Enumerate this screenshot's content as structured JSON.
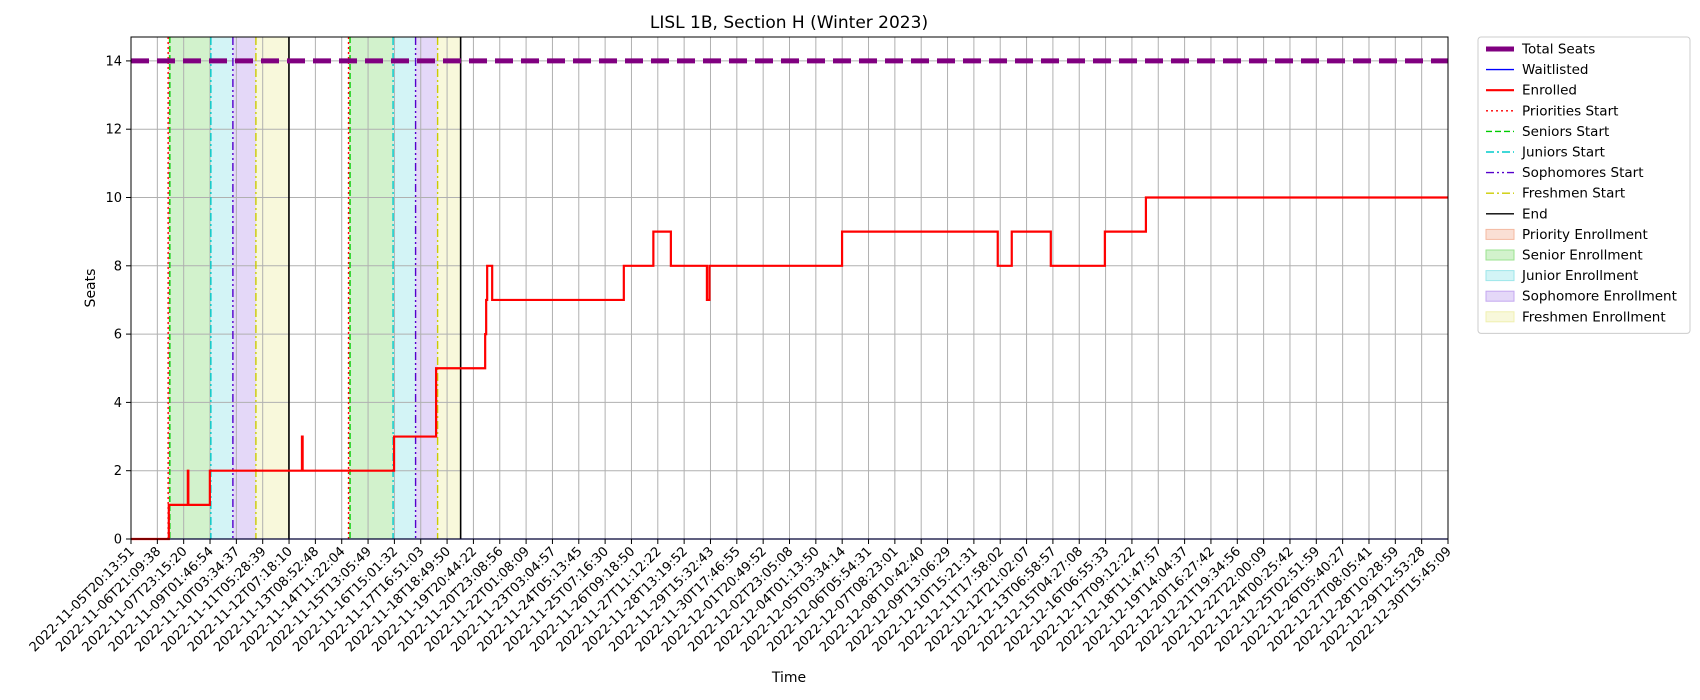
{
  "chart_data": {
    "type": "line",
    "title": "LISL 1B, Section H (Winter 2023)",
    "xlabel": "Time",
    "ylabel": "Seats",
    "xlim": [
      "2022-11-05T20:13:51",
      "2022-12-30T15:45:09"
    ],
    "ylim": [
      0,
      14.7
    ],
    "yticks": [
      0,
      2,
      4,
      6,
      8,
      10,
      12,
      14
    ],
    "grid": true,
    "legend_position": "outside-right",
    "x_tick_labels": [
      "2022-11-05T20:13:51",
      "2022-11-06T21:09:38",
      "2022-11-07T23:15:20",
      "2022-11-09T01:46:54",
      "2022-11-10T03:34:37",
      "2022-11-11T05:28:39",
      "2022-11-12T07:18:10",
      "2022-11-13T08:52:48",
      "2022-11-14T11:22:04",
      "2022-11-15T13:05:49",
      "2022-11-16T15:01:32",
      "2022-11-17T16:51:03",
      "2022-11-18T18:49:50",
      "2022-11-19T20:44:22",
      "2022-11-20T23:08:56",
      "2022-11-22T01:08:09",
      "2022-11-23T03:04:57",
      "2022-11-24T05:13:45",
      "2022-11-25T07:16:30",
      "2022-11-26T09:18:50",
      "2022-11-27T11:12:22",
      "2022-11-28T13:19:52",
      "2022-11-29T15:32:43",
      "2022-11-30T17:46:55",
      "2022-12-01T20:49:52",
      "2022-12-02T23:05:08",
      "2022-12-04T01:13:50",
      "2022-12-05T03:34:14",
      "2022-12-06T05:54:31",
      "2022-12-07T08:23:01",
      "2022-12-08T10:42:40",
      "2022-12-09T13:06:29",
      "2022-12-10T15:21:31",
      "2022-12-11T17:58:02",
      "2022-12-12T21:02:07",
      "2022-12-13T06:58:57",
      "2022-12-15T04:27:08",
      "2022-12-16T06:55:33",
      "2022-12-17T09:12:22",
      "2022-12-18T11:47:57",
      "2022-12-19T14:04:37",
      "2022-12-20T16:27:42",
      "2022-12-21T19:34:56",
      "2022-12-22T22:00:09",
      "2022-12-24T00:25:42",
      "2022-12-25T02:51:59",
      "2022-12-26T05:40:27",
      "2022-12-27T08:05:41",
      "2022-12-28T10:28:59",
      "2022-12-29T12:53:28",
      "2022-12-30T15:45:09"
    ],
    "series": [
      {
        "name": "Total Seats",
        "color": "#800080",
        "style": "dashed-thick",
        "x": [
          "2022-11-05T20:13:51",
          "2022-12-30T15:45:09"
        ],
        "y": [
          14,
          14
        ]
      },
      {
        "name": "Waitlisted",
        "color": "#0000ff",
        "style": "solid-thin",
        "x": [
          "2022-11-05T20:13:51",
          "2022-12-30T15:45:09"
        ],
        "y": [
          0,
          0
        ]
      },
      {
        "name": "Enrolled",
        "color": "#ff0000",
        "style": "step",
        "x": [
          "2022-11-05T20:13:51",
          "2022-11-07T10:00:00",
          "2022-11-08T05:00:00",
          "2022-11-08T05:30:00",
          "2022-11-09T03:00:00",
          "2022-11-12T23:00:00",
          "2022-11-12T23:40:00",
          "2022-11-16T19:00:00",
          "2022-11-18T13:00:00",
          "2022-11-20T14:00:00",
          "2022-11-20T15:00:00",
          "2022-11-20T16:00:00",
          "2022-11-20T21:00:00",
          "2022-11-26T08:30:00",
          "2022-11-27T14:00:00",
          "2022-11-28T07:30:00",
          "2022-11-29T19:30:00",
          "2022-11-29T22:00:00",
          "2022-12-05T10:30:00",
          "2022-12-11T22:00:00",
          "2022-12-12T12:00:00",
          "2022-12-14T03:00:00",
          "2022-12-16T09:00:00",
          "2022-12-18T02:00:00",
          "2022-12-30T15:45:09"
        ],
        "y": [
          0,
          1,
          2,
          1,
          2,
          3,
          2,
          3,
          5,
          6,
          7,
          8,
          7,
          8,
          9,
          8,
          7,
          8,
          9,
          8,
          9,
          8,
          9,
          10,
          10
        ]
      }
    ],
    "markers": [
      {
        "name": "Priorities Start",
        "color": "#ff0000",
        "style": "dotted",
        "x": [
          "2022-11-07T09:20:00",
          "2022-11-14T21:30:00"
        ]
      },
      {
        "name": "Seniors Start",
        "color": "#00cc00",
        "style": "dashed",
        "x": [
          "2022-11-07T11:00:00",
          "2022-11-14T23:00:00"
        ]
      },
      {
        "name": "Juniors Start",
        "color": "#00cccc",
        "style": "dashdot",
        "x": [
          "2022-11-09T04:00:00",
          "2022-11-16T18:00:00"
        ]
      },
      {
        "name": "Sophomores Start",
        "color": "#5500cc",
        "style": "dashdotdot",
        "x": [
          "2022-11-10T02:00:00",
          "2022-11-17T16:30:00"
        ]
      },
      {
        "name": "Freshmen Start",
        "color": "#cccc00",
        "style": "dashdot",
        "x": [
          "2022-11-11T01:00:00",
          "2022-11-18T14:30:00"
        ]
      },
      {
        "name": "End",
        "color": "#000000",
        "style": "solid",
        "x": [
          "2022-11-12T10:00:00",
          "2022-11-19T13:30:00"
        ]
      }
    ],
    "bands": [
      {
        "name": "Priority Enrollment",
        "color": "#f4b9a0",
        "ranges": [
          [
            "2022-11-07T09:20:00",
            "2022-11-07T11:00:00"
          ],
          [
            "2022-11-14T21:30:00",
            "2022-11-14T23:00:00"
          ]
        ]
      },
      {
        "name": "Senior Enrollment",
        "color": "#9be38f",
        "ranges": [
          [
            "2022-11-07T11:00:00",
            "2022-11-09T04:00:00"
          ],
          [
            "2022-11-14T23:00:00",
            "2022-11-16T18:00:00"
          ]
        ]
      },
      {
        "name": "Junior Enrollment",
        "color": "#9ee6ea",
        "ranges": [
          [
            "2022-11-09T04:00:00",
            "2022-11-10T02:00:00"
          ],
          [
            "2022-11-16T18:00:00",
            "2022-11-17T16:30:00"
          ]
        ]
      },
      {
        "name": "Sophomore Enrollment",
        "color": "#c4a8f0",
        "ranges": [
          [
            "2022-11-10T02:00:00",
            "2022-11-11T01:00:00"
          ],
          [
            "2022-11-17T16:30:00",
            "2022-11-18T14:30:00"
          ]
        ]
      },
      {
        "name": "Freshmen Enrollment",
        "color": "#f0f0b0",
        "ranges": [
          [
            "2022-11-11T01:00:00",
            "2022-11-12T10:00:00"
          ],
          [
            "2022-11-18T14:30:00",
            "2022-11-19T13:30:00"
          ]
        ]
      }
    ],
    "legend": [
      "Total Seats",
      "Waitlisted",
      "Enrolled",
      "Priorities Start",
      "Seniors Start",
      "Juniors Start",
      "Sophomores Start",
      "Freshmen Start",
      "End",
      "Priority Enrollment",
      "Senior Enrollment",
      "Junior Enrollment",
      "Sophomore Enrollment",
      "Freshmen Enrollment"
    ]
  }
}
